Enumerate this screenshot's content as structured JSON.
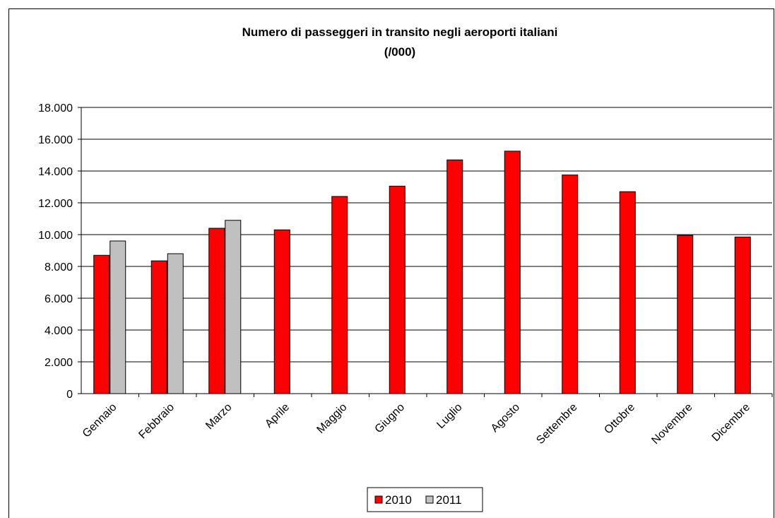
{
  "chart_data": {
    "type": "bar",
    "title": "Numero di passeggeri in transito negli aeroporti italiani",
    "subtitle": "(/000)",
    "categories": [
      "Gennaio",
      "Febbraio",
      "Marzo",
      "Aprile",
      "Maggio",
      "Giugno",
      "Luglio",
      "Agosto",
      "Settembre",
      "Ottobre",
      "Novembre",
      "Dicembre"
    ],
    "series": [
      {
        "name": "2010",
        "color": "#ff0000",
        "values": [
          8700,
          8350,
          10400,
          10300,
          12400,
          13050,
          14700,
          15250,
          13750,
          12700,
          9950,
          9850
        ]
      },
      {
        "name": "2011",
        "color": "#c0c0c0",
        "values": [
          9600,
          8800,
          10900,
          null,
          null,
          null,
          null,
          null,
          null,
          null,
          null,
          null
        ]
      }
    ],
    "ylim": [
      0,
      18000
    ],
    "yticks": [
      0,
      2000,
      4000,
      6000,
      8000,
      10000,
      12000,
      14000,
      16000,
      18000
    ],
    "ytick_labels": [
      "0",
      "2.000",
      "4.000",
      "6.000",
      "8.000",
      "10.000",
      "12.000",
      "14.000",
      "16.000",
      "18.000"
    ],
    "grid": true,
    "legend_position": "bottom"
  }
}
